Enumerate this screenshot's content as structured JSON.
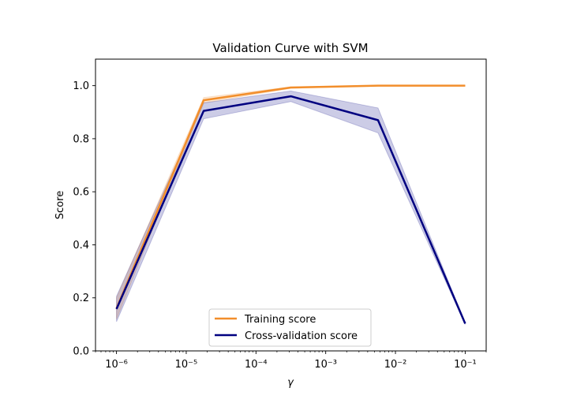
{
  "chart_data": {
    "type": "line",
    "title": "Validation Curve with SVM",
    "xlabel": "γ",
    "ylabel": "Score",
    "xscale": "log",
    "xlim": [
      5e-07,
      0.2
    ],
    "ylim": [
      0.0,
      1.1
    ],
    "grid": false,
    "legend_position": "lower-center",
    "x": [
      1e-06,
      1.778e-05,
      0.0003162,
      0.005623,
      0.1
    ],
    "x_tick_labels": [
      "10⁻⁶",
      "10⁻⁵",
      "10⁻⁴",
      "10⁻³",
      "10⁻²",
      "10⁻¹"
    ],
    "x_tick_values": [
      1e-06,
      1e-05,
      0.0001,
      0.001,
      0.01,
      0.1
    ],
    "y_tick_labels": [
      "0.0",
      "0.2",
      "0.4",
      "0.6",
      "0.8",
      "1.0"
    ],
    "y_tick_values": [
      0.0,
      0.2,
      0.4,
      0.6,
      0.8,
      1.0
    ],
    "series": [
      {
        "name": "Training score",
        "color": "#f28e2b",
        "values": [
          0.16,
          0.945,
          0.993,
          1.0,
          1.0
        ],
        "lower": [
          0.12,
          0.935,
          0.99,
          0.999,
          0.999
        ],
        "upper": [
          0.2,
          0.955,
          0.996,
          1.0,
          1.0
        ]
      },
      {
        "name": "Cross-validation score",
        "color": "#000080",
        "values": [
          0.158,
          0.905,
          0.96,
          0.87,
          0.103
        ],
        "lower": [
          0.11,
          0.875,
          0.94,
          0.822,
          0.1
        ],
        "upper": [
          0.206,
          0.935,
          0.98,
          0.916,
          0.106
        ]
      }
    ]
  }
}
